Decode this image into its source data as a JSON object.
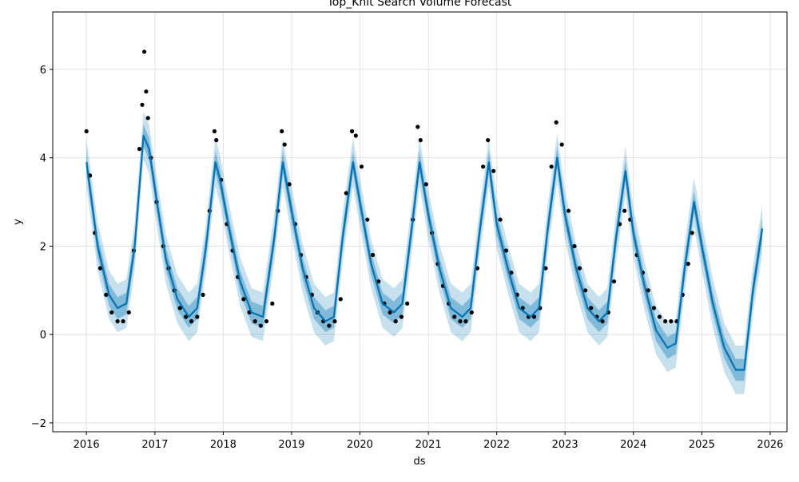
{
  "chart_data": {
    "type": "line",
    "title": "Top_Knit Search Volume Forecast",
    "xlabel": "ds",
    "ylabel": "y",
    "xlim": [
      "2015-07-05",
      "2026-04-01"
    ],
    "ylim": [
      -2.2,
      7.3
    ],
    "x_ticks": [
      "2016",
      "2017",
      "2018",
      "2019",
      "2020",
      "2021",
      "2022",
      "2023",
      "2024",
      "2025",
      "2026"
    ],
    "y_ticks": [
      -2,
      0,
      2,
      4,
      6
    ],
    "grid": true,
    "colors": {
      "forecast_line": "#0072B2",
      "uncertainty_band": "#0072B2",
      "observed_points": "#000000"
    },
    "series": [
      {
        "type": "line",
        "x": [
          "2016-01-01",
          "2016-03-01",
          "2016-05-01",
          "2016-06-15",
          "2016-08-01",
          "2016-09-15",
          "2016-11-01",
          "2016-12-01",
          "2017-01-15",
          "2017-03-01",
          "2017-05-01",
          "2017-07-01",
          "2017-08-15",
          "2017-10-01",
          "2017-11-20",
          "2017-12-15",
          "2018-02-01",
          "2018-04-01",
          "2018-06-01",
          "2018-08-01",
          "2018-10-01",
          "2018-11-15",
          "2019-01-01",
          "2019-03-01",
          "2019-05-01",
          "2019-07-01",
          "2019-08-15",
          "2019-10-01",
          "2019-11-25",
          "2020-01-01",
          "2020-03-01",
          "2020-05-01",
          "2020-07-01",
          "2020-08-15",
          "2020-10-01",
          "2020-11-15",
          "2021-01-01",
          "2021-03-01",
          "2021-05-01",
          "2021-07-01",
          "2021-08-15",
          "2021-10-01",
          "2021-11-20",
          "2022-01-01",
          "2022-03-01",
          "2022-05-01",
          "2022-07-01",
          "2022-08-15",
          "2022-10-01",
          "2022-11-20",
          "2023-01-01",
          "2023-03-01",
          "2023-05-01",
          "2023-07-01",
          "2023-08-15",
          "2023-10-01",
          "2023-11-20",
          "2024-01-01",
          "2024-03-01",
          "2024-05-01",
          "2024-07-01",
          "2024-08-15",
          "2024-10-01",
          "2024-11-20",
          "2025-01-01",
          "2025-03-01",
          "2025-05-01",
          "2025-07-01",
          "2025-08-15",
          "2025-10-01",
          "2025-11-20"
        ],
        "y": [
          3.9,
          2.0,
          0.9,
          0.6,
          0.7,
          2.0,
          4.5,
          4.2,
          2.9,
          1.7,
          0.8,
          0.4,
          0.6,
          2.0,
          3.9,
          3.5,
          2.4,
          1.2,
          0.5,
          0.4,
          2.2,
          3.9,
          2.8,
          1.5,
          0.6,
          0.3,
          0.4,
          2.2,
          3.9,
          3.0,
          1.6,
          0.7,
          0.5,
          0.7,
          2.3,
          3.9,
          2.7,
          1.5,
          0.6,
          0.4,
          0.6,
          2.3,
          3.9,
          2.5,
          1.5,
          0.6,
          0.4,
          0.6,
          2.4,
          4.0,
          2.7,
          1.5,
          0.6,
          0.3,
          0.5,
          2.2,
          3.7,
          2.3,
          1.1,
          0.1,
          -0.3,
          -0.2,
          1.5,
          3.0,
          2.0,
          0.7,
          -0.3,
          -0.8,
          -0.8,
          1.0,
          2.4
        ],
        "uncertainty_halfwidth": 0.55
      },
      {
        "type": "scatter",
        "x": [
          "2016-01-01",
          "2016-01-20",
          "2016-02-15",
          "2016-03-15",
          "2016-04-15",
          "2016-05-15",
          "2016-06-15",
          "2016-07-15",
          "2016-08-15",
          "2016-09-10",
          "2016-10-10",
          "2016-10-25",
          "2016-11-05",
          "2016-11-15",
          "2016-11-25",
          "2016-12-10",
          "2017-01-10",
          "2017-02-15",
          "2017-03-15",
          "2017-04-15",
          "2017-05-15",
          "2017-06-15",
          "2017-07-15",
          "2017-08-15",
          "2017-09-15",
          "2017-10-20",
          "2017-11-15",
          "2017-11-25",
          "2017-12-20",
          "2018-01-20",
          "2018-02-20",
          "2018-03-20",
          "2018-04-20",
          "2018-05-20",
          "2018-06-20",
          "2018-07-20",
          "2018-08-20",
          "2018-09-20",
          "2018-10-20",
          "2018-11-10",
          "2018-11-25",
          "2018-12-20",
          "2019-01-20",
          "2019-02-20",
          "2019-03-20",
          "2019-04-20",
          "2019-05-20",
          "2019-06-20",
          "2019-07-20",
          "2019-08-20",
          "2019-09-20",
          "2019-10-20",
          "2019-11-20",
          "2019-12-10",
          "2020-01-10",
          "2020-02-10",
          "2020-03-10",
          "2020-04-10",
          "2020-05-10",
          "2020-06-10",
          "2020-07-10",
          "2020-08-10",
          "2020-09-10",
          "2020-10-10",
          "2020-11-05",
          "2020-11-20",
          "2020-12-20",
          "2021-01-20",
          "2021-02-20",
          "2021-03-20",
          "2021-04-20",
          "2021-05-20",
          "2021-06-20",
          "2021-07-20",
          "2021-08-20",
          "2021-09-20",
          "2021-10-20",
          "2021-11-15",
          "2021-12-15",
          "2022-01-20",
          "2022-02-20",
          "2022-03-20",
          "2022-04-20",
          "2022-05-20",
          "2022-06-20",
          "2022-07-20",
          "2022-08-20",
          "2022-09-20",
          "2022-10-20",
          "2022-11-15",
          "2022-12-15",
          "2023-01-20",
          "2023-02-20",
          "2023-03-20",
          "2023-04-20",
          "2023-05-20",
          "2023-06-20",
          "2023-07-20",
          "2023-08-20",
          "2023-09-20",
          "2023-10-20",
          "2023-11-15",
          "2023-12-15",
          "2024-01-20",
          "2024-02-20",
          "2024-03-20",
          "2024-04-20",
          "2024-05-20",
          "2024-06-20",
          "2024-07-20",
          "2024-08-20",
          "2024-09-20",
          "2024-10-20",
          "2024-11-10"
        ],
        "y": [
          4.6,
          3.6,
          2.3,
          1.5,
          0.9,
          0.5,
          0.3,
          0.3,
          0.5,
          1.9,
          4.2,
          5.2,
          6.4,
          5.5,
          4.9,
          4.0,
          3.0,
          2.0,
          1.5,
          1.0,
          0.6,
          0.4,
          0.3,
          0.4,
          0.9,
          2.8,
          4.6,
          4.4,
          3.5,
          2.5,
          1.9,
          1.3,
          0.8,
          0.5,
          0.3,
          0.2,
          0.3,
          0.7,
          2.8,
          4.6,
          4.3,
          3.4,
          2.5,
          1.8,
          1.3,
          0.9,
          0.5,
          0.3,
          0.2,
          0.3,
          0.8,
          3.2,
          4.6,
          4.5,
          3.8,
          2.6,
          1.8,
          1.2,
          0.7,
          0.5,
          0.3,
          0.4,
          0.7,
          2.6,
          4.7,
          4.4,
          3.4,
          2.3,
          1.6,
          1.1,
          0.7,
          0.4,
          0.3,
          0.3,
          0.5,
          1.5,
          3.8,
          4.4,
          3.7,
          2.6,
          1.9,
          1.4,
          0.9,
          0.6,
          0.4,
          0.4,
          0.6,
          1.5,
          3.8,
          4.8,
          4.3,
          2.8,
          2.0,
          1.5,
          1.0,
          0.6,
          0.4,
          0.3,
          0.5,
          1.2,
          2.5,
          2.8,
          2.6,
          1.8,
          1.4,
          1.0,
          0.6,
          0.4,
          0.3,
          0.3,
          0.3,
          0.9,
          1.6,
          2.3
        ]
      }
    ]
  }
}
